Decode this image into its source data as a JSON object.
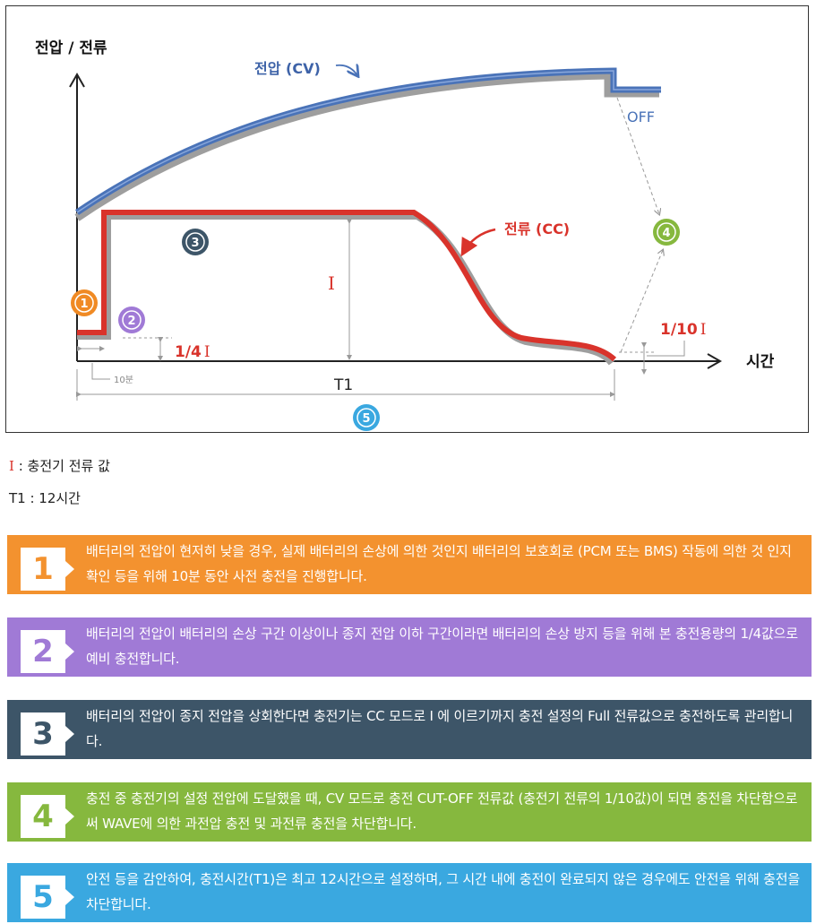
{
  "diagram": {
    "y_axis_label": "전압 / 전류",
    "x_axis_label": "시간",
    "voltage_label": "전압 (CV)",
    "current_label": "전류 (CC)",
    "off_label": "OFF",
    "i_label": "I",
    "quarter_label": "1/4",
    "quarter_roman": "I",
    "tenth_label": "1/10",
    "tenth_roman": "I",
    "ten_min_label": "10분",
    "t1_label": "T1",
    "markers": [
      "1",
      "2",
      "3",
      "4",
      "5"
    ],
    "colors": {
      "voltage": "#4a73b8",
      "current": "#d9332b",
      "shadow": "#9e9e9e",
      "marker1": "#f08a24",
      "marker2": "#a07ad6",
      "marker3": "#3d5568",
      "marker4": "#86b83e",
      "marker5": "#3aa8e0"
    }
  },
  "legend": {
    "i_symbol": "I",
    "i_text": " : 충전기 전류 값",
    "t1_text": "T1 : 12시간"
  },
  "steps": [
    {
      "number": "1",
      "color": "#f3922f",
      "text": "배터리의 전압이 현저히 낮을 경우, 실제 배터리의 손상에 의한 것인지 배터리의 보호회로 (PCM 또는 BMS) 작동에 의한 것 인지 확인 등을 위해 10분 동안 사전 충전을 진행합니다."
    },
    {
      "number": "2",
      "color": "#a07ad6",
      "text": "배터리의 전압이 배터리의 손상 구간 이상이나 종지 전압 이하 구간이라면 배터리의 손상 방지 등을 위해 본 충전용량의 1/4값으로 예비 충전합니다."
    },
    {
      "number": "3",
      "color": "#3d5568",
      "text": "배터리의 전압이 종지 전압을 상회한다면 충전기는 CC 모드로 I 에 이르기까지 충전 설정의 Full 전류값으로 충전하도록 관리합니다."
    },
    {
      "number": "4",
      "color": "#86b83e",
      "text": "충전 중 충전기의 설정 전압에 도달했을 때, CV 모드로 충전 CUT-OFF 전류값 (충전기 전류의 1/10값)이 되면 충전을 차단함으로써 WAVE에 의한 과전압 충전 및 과전류 충전을 차단합니다."
    },
    {
      "number": "5",
      "color": "#3aa8e0",
      "text": "안전 등을 감안하여, 충전시간(T1)은 최고 12시간으로 설정하며, 그 시간 내에 충전이 완료되지 않은 경우에도 안전을 위해 충전을 차단합니다."
    }
  ]
}
